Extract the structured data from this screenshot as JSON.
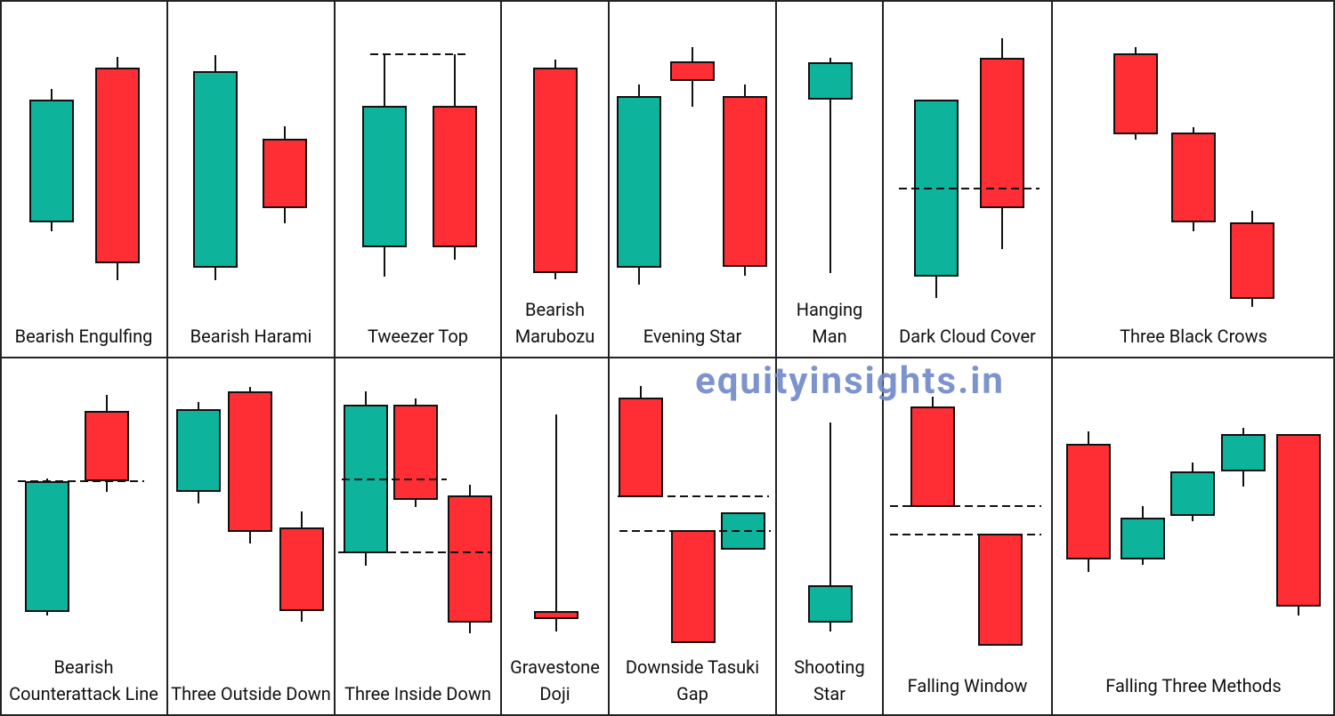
{
  "patterns": [
    {
      "name": "Bearish Engulfing"
    },
    {
      "name": "Bearish Harami"
    },
    {
      "name": "Tweezer Top"
    },
    {
      "name": "Bearish Marubozu"
    },
    {
      "name": "Evening Star"
    },
    {
      "name": "Hanging Man"
    },
    {
      "name": "Dark Cloud Cover"
    },
    {
      "name": "Three Black Crows"
    },
    {
      "name": "Bearish Counterattack Line"
    },
    {
      "name": "Three Outside Down"
    },
    {
      "name": "Three Inside Down"
    },
    {
      "name": "Gravestone Doji"
    },
    {
      "name": "Downside Tasuki Gap"
    },
    {
      "name": "Shooting Star"
    },
    {
      "name": "Falling Window"
    },
    {
      "name": "Falling Three Methods"
    }
  ],
  "watermark": "equityinsights.in"
}
